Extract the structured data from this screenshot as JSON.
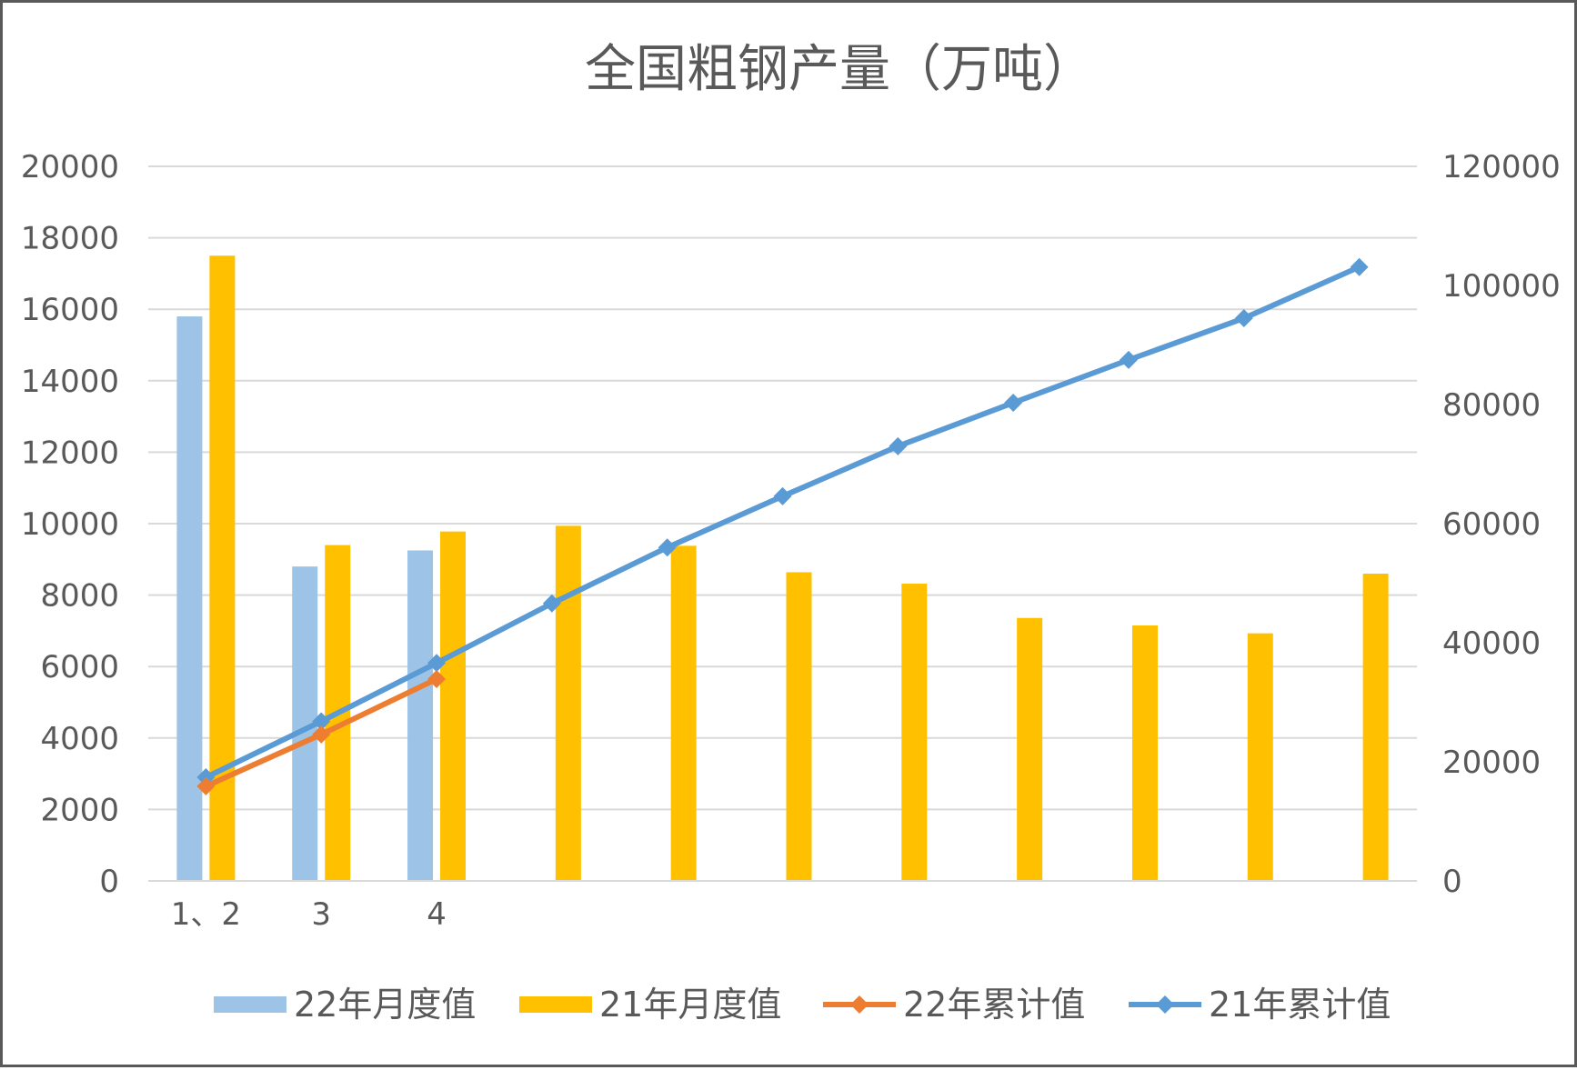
{
  "chart_data": {
    "type": "bar",
    "title": "全国粗钢产量（万吨）",
    "categories": [
      "1、2",
      "3",
      "4",
      "",
      "",
      "",
      "",
      "",
      "",
      "",
      ""
    ],
    "series": [
      {
        "name": "22年月度值",
        "kind": "bar",
        "axis": "left",
        "color": "#9DC3E6",
        "values": [
          15800,
          8800,
          9250,
          null,
          null,
          null,
          null,
          null,
          null,
          null,
          null
        ]
      },
      {
        "name": "21年月度值",
        "kind": "bar",
        "axis": "left",
        "color": "#FFC000",
        "values": [
          17500,
          9400,
          9780,
          9940,
          9380,
          8640,
          8320,
          7360,
          7150,
          6930,
          8600
        ]
      },
      {
        "name": "22年累计值",
        "kind": "line",
        "axis": "right",
        "color": "#ED7D31",
        "values": [
          15900,
          24600,
          33900,
          null,
          null,
          null,
          null,
          null,
          null,
          null,
          null
        ]
      },
      {
        "name": "21年累计值",
        "kind": "line",
        "axis": "right",
        "color": "#5B9BD5",
        "values": [
          17400,
          26800,
          36600,
          46600,
          56000,
          64600,
          73000,
          80300,
          87500,
          94500,
          103100
        ]
      }
    ],
    "y_left": {
      "min": 0,
      "max": 20000,
      "ticks": [
        "0",
        "2000",
        "4000",
        "6000",
        "8000",
        "10000",
        "12000",
        "14000",
        "16000",
        "18000",
        "20000"
      ]
    },
    "y_right": {
      "min": 0,
      "max": 120000,
      "ticks": [
        "0",
        "20000",
        "40000",
        "60000",
        "80000",
        "100000",
        "120000"
      ]
    },
    "grid": true,
    "legend_position": "bottom"
  }
}
